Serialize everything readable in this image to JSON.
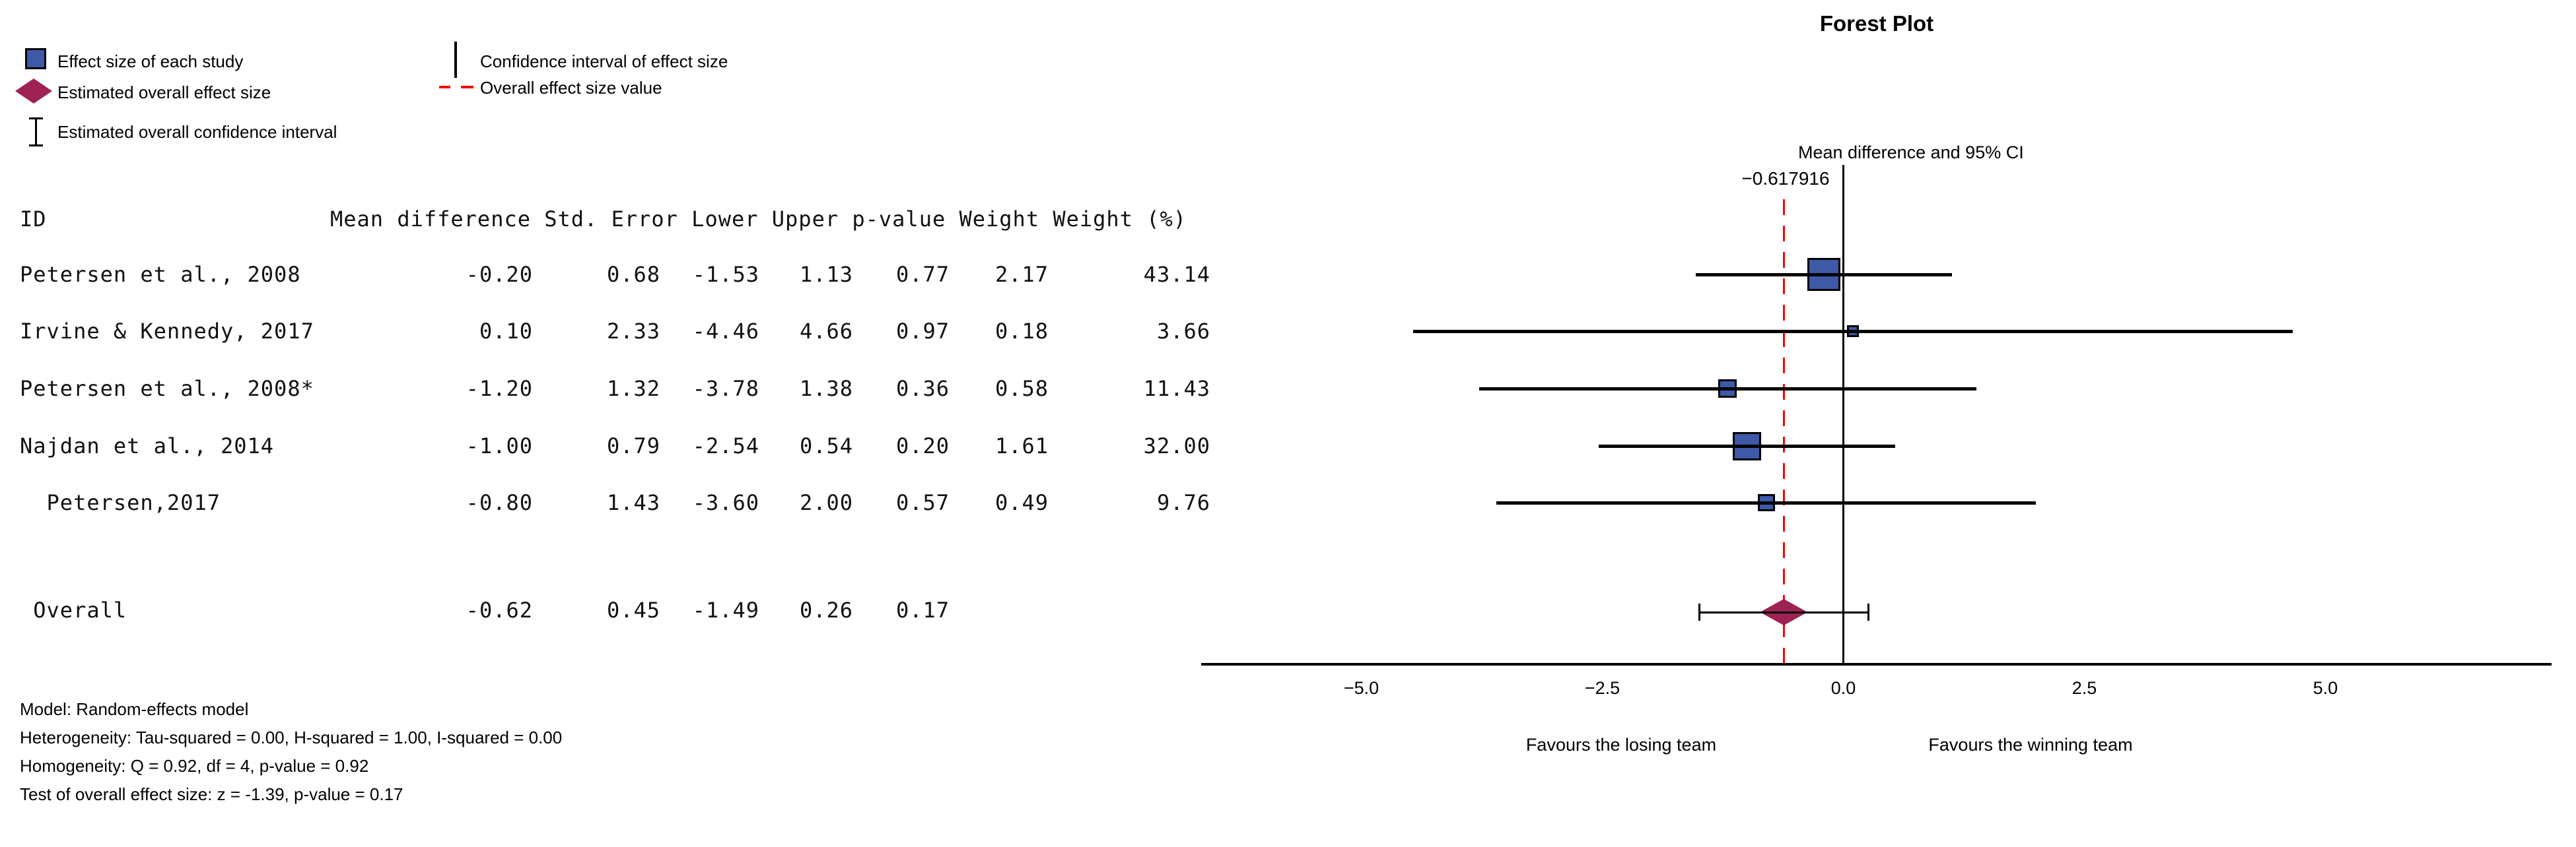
{
  "title": "Forest Plot",
  "legend": {
    "square_label": "Effect size of each study",
    "diamond_label": "Estimated overall effect size",
    "ibeam_label": "Estimated overall confidence interval",
    "ci_label": "Confidence interval of effect size",
    "overall_line_label": "Overall effect size value"
  },
  "colors": {
    "study_square": "#3E59A8",
    "overall_diamond": "#9E2254",
    "overall_value_line": "#FF0000",
    "ink": "#000000"
  },
  "table": {
    "headers": [
      "ID",
      "Mean difference",
      "Std. Error",
      "Lower",
      "Upper",
      "p-value",
      "Weight",
      "Weight (%)"
    ],
    "rows": [
      {
        "id": "Petersen et al., 2008",
        "md": "-0.20",
        "se": "0.68",
        "lower": "-1.53",
        "upper": "1.13",
        "p": "0.77",
        "w": "2.17",
        "wp": "43.14"
      },
      {
        "id": "Irvine & Kennedy, 2017",
        "md": "0.10",
        "se": "2.33",
        "lower": "-4.46",
        "upper": "4.66",
        "p": "0.97",
        "w": "0.18",
        "wp": "3.66"
      },
      {
        "id": "Petersen et al., 2008*",
        "md": "-1.20",
        "se": "1.32",
        "lower": "-3.78",
        "upper": "1.38",
        "p": "0.36",
        "w": "0.58",
        "wp": "11.43"
      },
      {
        "id": "Najdan et al., 2014",
        "md": "-1.00",
        "se": "0.79",
        "lower": "-2.54",
        "upper": "0.54",
        "p": "0.20",
        "w": "1.61",
        "wp": "32.00"
      },
      {
        "id": "  Petersen,2017",
        "md": "-0.80",
        "se": "1.43",
        "lower": "-3.60",
        "upper": "2.00",
        "p": "0.57",
        "w": "0.49",
        "wp": "9.76"
      }
    ],
    "overall_row": {
      "id": " Overall",
      "md": "-0.62",
      "se": "0.45",
      "lower": "-1.49",
      "upper": "0.26",
      "p": "0.17",
      "w": "",
      "wp": ""
    }
  },
  "footnotes": [
    "Model: Random-effects model",
    "Heterogeneity: Tau-squared = 0.00, H-squared = 1.00, I-squared = 0.00",
    "Homogeneity: Q = 0.92, df = 4, p-value = 0.92",
    "Test of overall effect size: z = -1.39, p-value = 0.17"
  ],
  "plot": {
    "axis_top_label": "Mean difference and 95% CI",
    "overall_value_label": "−0.617916",
    "x_tick_labels": [
      "−5.0",
      "−2.5",
      "0.0",
      "2.5",
      "5.0"
    ],
    "x_left_label": "Favours the losing team",
    "x_right_label": "Favours the winning team"
  },
  "chart_data": {
    "type": "forest",
    "title": "Forest Plot",
    "axis_label": "Mean difference and 95% CI",
    "xlabel_left": "Favours the losing team",
    "xlabel_right": "Favours the winning team",
    "x_ticks": [
      -5.0,
      -2.5,
      0.0,
      2.5,
      5.0
    ],
    "x_range": [
      -6.65,
      7.35
    ],
    "grid": false,
    "studies": [
      {
        "id": "Petersen et al., 2008",
        "mean": -0.2,
        "ci": [
          -1.53,
          1.13
        ],
        "weight_pct": 43.14
      },
      {
        "id": "Irvine & Kennedy, 2017",
        "mean": 0.1,
        "ci": [
          -4.46,
          4.66
        ],
        "weight_pct": 3.66
      },
      {
        "id": "Petersen et al., 2008*",
        "mean": -1.2,
        "ci": [
          -3.78,
          1.38
        ],
        "weight_pct": 11.43
      },
      {
        "id": "Najdan et al., 2014",
        "mean": -1.0,
        "ci": [
          -2.54,
          0.54
        ],
        "weight_pct": 32.0
      },
      {
        "id": "Petersen,2017",
        "mean": -0.8,
        "ci": [
          -3.6,
          2.0
        ],
        "weight_pct": 9.76
      }
    ],
    "overall": {
      "id": "Overall",
      "mean": -0.617916,
      "ci": [
        -1.49,
        0.26
      ]
    },
    "overall_effect_line_x": -0.617916
  }
}
